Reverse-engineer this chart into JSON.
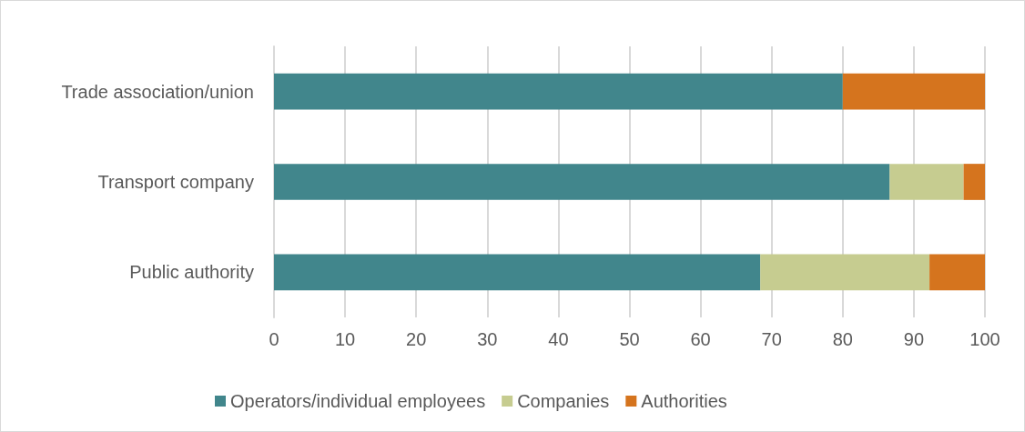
{
  "chart_data": {
    "type": "bar",
    "orientation": "horizontal",
    "stacked": true,
    "categories": [
      "Trade association/union",
      "Transport company",
      "Public authority"
    ],
    "series": [
      {
        "name": "Operators/individual employees",
        "color": "#41868c",
        "values": [
          80,
          86.6,
          68.4
        ]
      },
      {
        "name": "Companies",
        "color": "#c6cc90",
        "values": [
          0,
          10.4,
          23.8
        ]
      },
      {
        "name": "Authorities",
        "color": "#d5741e",
        "values": [
          20,
          3.0,
          7.8
        ]
      }
    ],
    "xlim": [
      0,
      100
    ],
    "xticks": [
      0,
      10,
      20,
      30,
      40,
      50,
      60,
      70,
      80,
      90,
      100
    ],
    "grid": "x",
    "legend": "bottom"
  }
}
